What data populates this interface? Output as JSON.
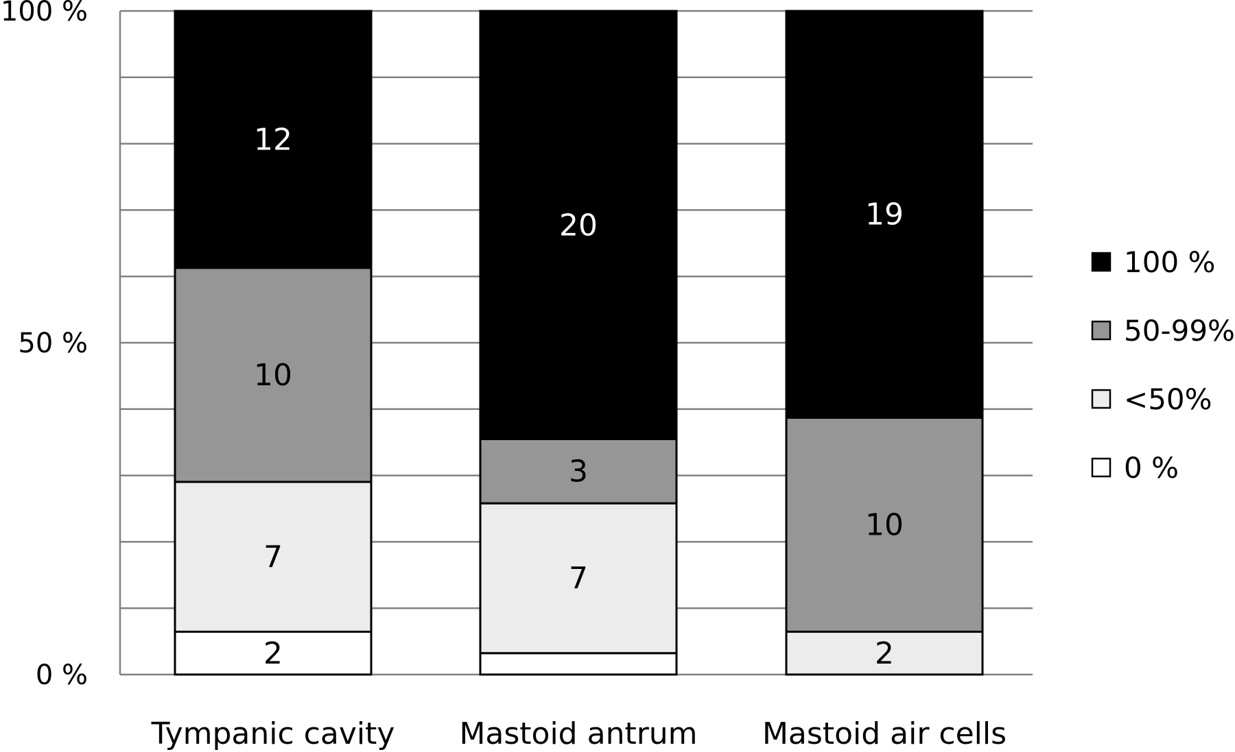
{
  "chart_data": {
    "type": "bar",
    "stacked": true,
    "normalized_percent": true,
    "categories": [
      "Tympanic cavity",
      "Mastoid antrum",
      "Mastoid air cells"
    ],
    "series": [
      {
        "name": "0 %",
        "color": "#ffffff",
        "values": [
          2,
          1,
          0
        ],
        "labels": [
          "2",
          "",
          ""
        ]
      },
      {
        "name": "<50%",
        "color": "#ececec",
        "values": [
          7,
          7,
          2
        ],
        "labels": [
          "7",
          "7",
          "2"
        ]
      },
      {
        "name": "50-99%",
        "color": "#969696",
        "values": [
          10,
          3,
          10
        ],
        "labels": [
          "10",
          "3",
          "10"
        ]
      },
      {
        "name": "100 %",
        "color": "#000000",
        "values": [
          12,
          20,
          19
        ],
        "labels": [
          "12",
          "20",
          "19"
        ]
      }
    ],
    "legend_order": [
      "100 %",
      "50-99%",
      "<50%",
      "0 %"
    ],
    "yticks": [
      "0 %",
      "50 %",
      "100 %"
    ],
    "ylim": [
      0,
      100
    ],
    "gridlines": 10,
    "grid": true,
    "legend_position": "right",
    "title": "",
    "xlabel": "",
    "ylabel": ""
  }
}
